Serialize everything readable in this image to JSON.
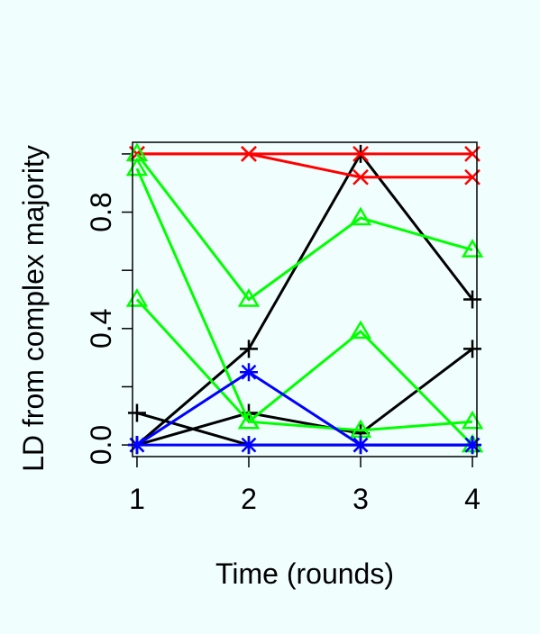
{
  "chart_data": {
    "type": "line",
    "title": "",
    "xlabel": "Time (rounds)",
    "ylabel": "LD from complex majority",
    "x": [
      1,
      2,
      3,
      4
    ],
    "xticks": [
      1,
      2,
      3,
      4
    ],
    "yticks": [
      0.0,
      0.4,
      0.8
    ],
    "yticklabels": [
      "0.0",
      "0.4",
      "0.8"
    ],
    "xlim": [
      0.96,
      4.04
    ],
    "ylim": [
      -0.04,
      1.04
    ],
    "grid": false,
    "colors": {
      "background": "#f0fffe",
      "black": "#000000",
      "red": "#ff0000",
      "green": "#00ff00",
      "blue": "#0000ff"
    },
    "series": [
      {
        "color": "black",
        "marker": "plus",
        "values": [
          0.11,
          0.0,
          0.0,
          0.0
        ]
      },
      {
        "color": "black",
        "marker": "plus",
        "values": [
          0.0,
          0.33,
          1.0,
          0.5
        ]
      },
      {
        "color": "black",
        "marker": "plus",
        "values": [
          0.0,
          0.11,
          0.04,
          0.33
        ]
      },
      {
        "color": "red",
        "marker": "x",
        "values": [
          1.0,
          1.0,
          1.0,
          1.0
        ]
      },
      {
        "color": "red",
        "marker": "x",
        "values": [
          1.0,
          1.0,
          0.92,
          0.92
        ]
      },
      {
        "color": "green",
        "marker": "triangle",
        "values": [
          1.0,
          0.5,
          0.78,
          0.67
        ]
      },
      {
        "color": "green",
        "marker": "triangle",
        "values": [
          0.95,
          0.08,
          0.39,
          0.0
        ]
      },
      {
        "color": "green",
        "marker": "triangle",
        "values": [
          0.5,
          0.08,
          0.05,
          0.08
        ]
      },
      {
        "color": "blue",
        "marker": "asterisk",
        "values": [
          0.0,
          0.25,
          0.0,
          0.0
        ]
      },
      {
        "color": "blue",
        "marker": "asterisk",
        "values": [
          0.0,
          0.0,
          0.0,
          0.0
        ]
      }
    ]
  }
}
